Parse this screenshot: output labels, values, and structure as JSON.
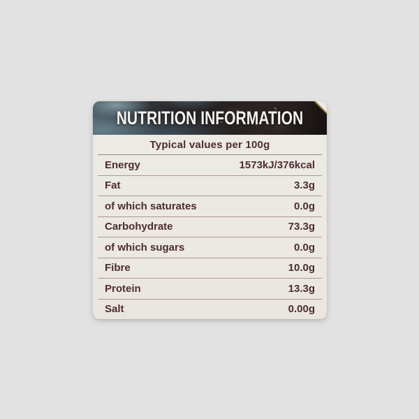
{
  "page": {
    "background_color": "#e2e2e2"
  },
  "label": {
    "title": "NUTRITION INFORMATION",
    "caption": "Typical values per 100g",
    "rows": [
      {
        "name": "Energy",
        "value": "1573kJ/376kcal"
      },
      {
        "name": "Fat",
        "value": "3.3g"
      },
      {
        "name": "of which saturates",
        "value": "0.0g"
      },
      {
        "name": "Carbohydrate",
        "value": "73.3g"
      },
      {
        "name": "of which sugars",
        "value": "0.0g"
      },
      {
        "name": "Fibre",
        "value": "10.0g"
      },
      {
        "name": "Protein",
        "value": "13.3g"
      },
      {
        "name": "Salt",
        "value": "0.00g"
      }
    ],
    "colors": {
      "paper": "#ece9e3",
      "text": "#4d2c33",
      "divider": "#806056",
      "header_background": "#262122",
      "header_blue_sheen": "#52707f",
      "header_text": "#f4f2ee",
      "corner_glint": "#c49a55"
    }
  }
}
